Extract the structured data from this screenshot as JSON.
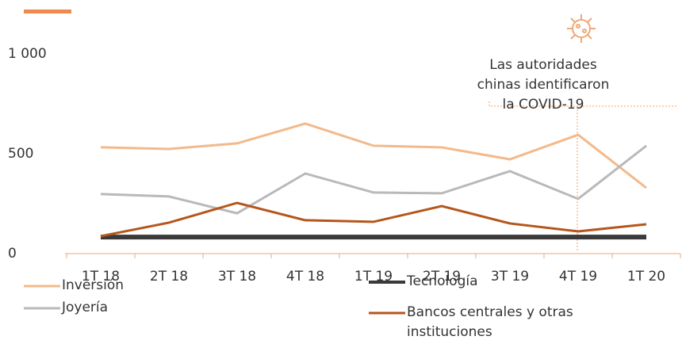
{
  "chart_data": {
    "type": "line",
    "categories": [
      "1T 18",
      "2T 18",
      "3T 18",
      "4T 18",
      "1T 19",
      "2T 19",
      "3T 19",
      "4T 19",
      "1T 20"
    ],
    "series": [
      {
        "name": "Inversión",
        "color": "#f3b98a",
        "values": [
          532,
          524,
          552,
          651,
          540,
          532,
          472,
          595,
          329
        ]
      },
      {
        "name": "Joyería",
        "color": "#b9b9b9",
        "values": [
          298,
          286,
          202,
          401,
          306,
          302,
          413,
          274,
          540
        ]
      },
      {
        "name": "Tecnología",
        "color": "#3a3a3a",
        "values": [
          83,
          83,
          83,
          83,
          83,
          83,
          83,
          83,
          83
        ]
      },
      {
        "name": "Bancos centrales y otras instituciones",
        "color": "#b5561b",
        "values": [
          87,
          155,
          254,
          167,
          159,
          238,
          151,
          111,
          147
        ]
      }
    ],
    "ylim": [
      0,
      1000
    ],
    "yticks": [
      0,
      500,
      {
        "value": 1000,
        "label": "1 000"
      }
    ],
    "annotation": "Las autoridades chinas identificaron la COVID-19",
    "grid": false
  }
}
